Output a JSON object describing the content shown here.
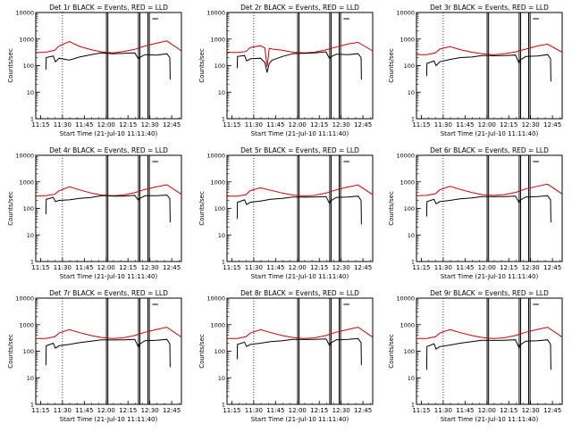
{
  "chart_data": [
    {
      "type": "line",
      "title": "Det 1r BLACK = Events, RED = LLD",
      "ylabel": "Counts/sec",
      "xlabel": "Start Time (21-Jul-10 11:11:40)",
      "yscale": "log",
      "ylim": [
        1,
        10000
      ],
      "yticks": [
        "1",
        "10",
        "100",
        "1000",
        "10000"
      ],
      "xlim_min": [
        0,
        100
      ],
      "x_tick_minutes": [
        3.33,
        18.33,
        33.33,
        48.33,
        63.33,
        78.33,
        93.33
      ],
      "xtick_labels": [
        "11:15",
        "11:30",
        "11:45",
        "12:00",
        "12:15",
        "12:30",
        "12:45"
      ],
      "series": [
        {
          "color": "#cc0000",
          "x": [
            0,
            7,
            13,
            16,
            23,
            30,
            38,
            45,
            53,
            60,
            68,
            75,
            83,
            90,
            100
          ],
          "values": [
            310,
            320,
            380,
            550,
            800,
            530,
            400,
            330,
            300,
            340,
            410,
            550,
            700,
            850,
            360
          ]
        },
        {
          "color": "#000000",
          "x": [
            7,
            7.2,
            12,
            13.5,
            16,
            23,
            30,
            38,
            45,
            49,
            53,
            60,
            68,
            70.5,
            71,
            75,
            83,
            90,
            92,
            92.3
          ],
          "values": [
            70,
            200,
            230,
            140,
            190,
            160,
            210,
            260,
            300,
            290,
            280,
            290,
            300,
            180,
            200,
            260,
            250,
            280,
            200,
            30
          ]
        }
      ]
    },
    {
      "type": "line",
      "title": "Det 2r BLACK = Events, RED = LLD",
      "ylabel": "Counts/sec",
      "xlabel": "Start Time (21-Jul-10 11:11:40)",
      "yscale": "log",
      "ylim": [
        1,
        10000
      ],
      "yticks": [
        "1",
        "10",
        "100",
        "1000",
        "10000"
      ],
      "xlim_min": [
        0,
        100
      ],
      "x_tick_minutes": [
        3.33,
        18.33,
        33.33,
        48.33,
        63.33,
        78.33,
        93.33
      ],
      "xtick_labels": [
        "11:15",
        "11:30",
        "11:45",
        "12:00",
        "12:15",
        "12:30",
        "12:45"
      ],
      "series": [
        {
          "color": "#cc0000",
          "x": [
            0,
            7,
            13,
            16,
            23,
            26,
            27.5,
            29,
            31,
            38,
            45,
            53,
            60,
            68,
            75,
            83,
            90,
            100
          ],
          "values": [
            320,
            310,
            340,
            480,
            560,
            460,
            90,
            450,
            420,
            380,
            320,
            300,
            320,
            390,
            500,
            650,
            750,
            360
          ]
        },
        {
          "color": "#000000",
          "x": [
            7,
            7.2,
            12,
            13.5,
            16,
            23,
            26,
            27.5,
            29,
            31,
            38,
            45,
            49,
            53,
            60,
            68,
            70.5,
            71,
            75,
            83,
            90,
            92,
            92.3
          ],
          "values": [
            80,
            220,
            240,
            150,
            180,
            190,
            130,
            55,
            120,
            160,
            220,
            280,
            290,
            290,
            300,
            330,
            180,
            210,
            270,
            260,
            280,
            200,
            30
          ]
        }
      ]
    },
    {
      "type": "line",
      "title": "Det 3r BLACK = Events, RED = LLD",
      "ylabel": "Counts/sec",
      "xlabel": "Start Time (21-Jul-10 11:11:40)",
      "yscale": "log",
      "ylim": [
        1,
        10000
      ],
      "yticks": [
        "1",
        "10",
        "100",
        "1000",
        "10000"
      ],
      "xlim_min": [
        0,
        100
      ],
      "x_tick_minutes": [
        3.33,
        18.33,
        33.33,
        48.33,
        63.33,
        78.33,
        93.33
      ],
      "xtick_labels": [
        "11:15",
        "11:30",
        "11:45",
        "12:00",
        "12:15",
        "12:30",
        "12:45"
      ],
      "series": [
        {
          "color": "#cc0000",
          "x": [
            0,
            7,
            13,
            16,
            23,
            30,
            38,
            45,
            53,
            60,
            68,
            75,
            83,
            90,
            100
          ],
          "values": [
            260,
            260,
            300,
            420,
            520,
            400,
            320,
            280,
            260,
            280,
            330,
            420,
            550,
            640,
            320
          ]
        },
        {
          "color": "#000000",
          "x": [
            7,
            7.2,
            12,
            13.5,
            16,
            23,
            30,
            38,
            45,
            49,
            53,
            60,
            68,
            70.5,
            71,
            75,
            83,
            90,
            92,
            92.3
          ],
          "values": [
            40,
            120,
            150,
            100,
            140,
            170,
            200,
            210,
            240,
            240,
            235,
            240,
            250,
            120,
            160,
            220,
            230,
            260,
            180,
            25
          ]
        }
      ]
    },
    {
      "type": "line",
      "title": "Det 4r BLACK = Events, RED = LLD",
      "ylabel": "Counts/sec",
      "xlabel": "Start Time (21-Jul-10 11:11:40)",
      "yscale": "log",
      "ylim": [
        1,
        10000
      ],
      "yticks": [
        "1",
        "10",
        "100",
        "1000",
        "10000"
      ],
      "xlim_min": [
        0,
        100
      ],
      "x_tick_minutes": [
        3.33,
        18.33,
        33.33,
        48.33,
        63.33,
        78.33,
        93.33
      ],
      "xtick_labels": [
        "11:15",
        "11:30",
        "11:45",
        "12:00",
        "12:15",
        "12:30",
        "12:45"
      ],
      "series": [
        {
          "color": "#cc0000",
          "x": [
            0,
            7,
            13,
            16,
            23,
            30,
            38,
            45,
            53,
            60,
            68,
            75,
            83,
            90,
            100
          ],
          "values": [
            290,
            300,
            340,
            460,
            650,
            500,
            380,
            320,
            300,
            320,
            390,
            520,
            650,
            780,
            340
          ]
        },
        {
          "color": "#000000",
          "x": [
            7,
            7.2,
            12,
            13.5,
            16,
            23,
            30,
            38,
            45,
            49,
            53,
            60,
            68,
            70.5,
            71,
            75,
            83,
            90,
            92,
            92.3
          ],
          "values": [
            60,
            220,
            260,
            180,
            200,
            210,
            240,
            260,
            300,
            300,
            290,
            290,
            310,
            200,
            230,
            300,
            300,
            320,
            230,
            30
          ]
        }
      ]
    },
    {
      "type": "line",
      "title": "Det 5r BLACK = Events, RED = LLD",
      "ylabel": "Counts/sec",
      "xlabel": "Start Time (21-Jul-10 11:11:40)",
      "yscale": "log",
      "ylim": [
        1,
        10000
      ],
      "yticks": [
        "1",
        "10",
        "100",
        "1000",
        "10000"
      ],
      "xlim_min": [
        0,
        100
      ],
      "x_tick_minutes": [
        3.33,
        18.33,
        33.33,
        48.33,
        63.33,
        78.33,
        93.33
      ],
      "xtick_labels": [
        "11:15",
        "11:30",
        "11:45",
        "12:00",
        "12:15",
        "12:30",
        "12:45"
      ],
      "series": [
        {
          "color": "#cc0000",
          "x": [
            0,
            7,
            13,
            16,
            23,
            30,
            38,
            45,
            53,
            60,
            68,
            75,
            83,
            90,
            100
          ],
          "values": [
            290,
            290,
            330,
            470,
            600,
            480,
            380,
            320,
            290,
            310,
            380,
            500,
            640,
            760,
            330
          ]
        },
        {
          "color": "#000000",
          "x": [
            7,
            7.2,
            12,
            13.5,
            16,
            23,
            30,
            38,
            45,
            49,
            53,
            60,
            68,
            70.5,
            71,
            75,
            83,
            90,
            92,
            92.3
          ],
          "values": [
            40,
            170,
            210,
            140,
            170,
            190,
            220,
            240,
            270,
            270,
            265,
            270,
            280,
            150,
            190,
            260,
            270,
            290,
            200,
            25
          ]
        }
      ]
    },
    {
      "type": "line",
      "title": "Det 6r BLACK = Events, RED = LLD",
      "ylabel": "Counts/sec",
      "xlabel": "Start Time (21-Jul-10 11:11:40)",
      "yscale": "log",
      "ylim": [
        1,
        10000
      ],
      "yticks": [
        "1",
        "10",
        "100",
        "1000",
        "10000"
      ],
      "xlim_min": [
        0,
        100
      ],
      "x_tick_minutes": [
        3.33,
        18.33,
        33.33,
        48.33,
        63.33,
        78.33,
        93.33
      ],
      "xtick_labels": [
        "11:15",
        "11:30",
        "11:45",
        "12:00",
        "12:15",
        "12:30",
        "12:45"
      ],
      "series": [
        {
          "color": "#cc0000",
          "x": [
            0,
            7,
            13,
            16,
            23,
            30,
            38,
            45,
            53,
            60,
            68,
            75,
            83,
            90,
            100
          ],
          "values": [
            300,
            310,
            360,
            500,
            680,
            520,
            400,
            330,
            310,
            330,
            400,
            540,
            680,
            820,
            350
          ]
        },
        {
          "color": "#000000",
          "x": [
            7,
            7.2,
            12,
            13.5,
            16,
            23,
            30,
            38,
            45,
            49,
            53,
            60,
            68,
            70.5,
            71,
            75,
            83,
            90,
            92,
            92.3
          ],
          "values": [
            50,
            180,
            220,
            150,
            180,
            200,
            230,
            250,
            280,
            280,
            275,
            280,
            290,
            160,
            200,
            270,
            280,
            300,
            210,
            30
          ]
        }
      ]
    },
    {
      "type": "line",
      "title": "Det 7r BLACK = Events, RED = LLD",
      "ylabel": "Counts/sec",
      "xlabel": "Start Time (21-Jul-10 11:11:40)",
      "yscale": "log",
      "ylim": [
        1,
        10000
      ],
      "yticks": [
        "1",
        "10",
        "100",
        "1000",
        "10000"
      ],
      "xlim_min": [
        0,
        100
      ],
      "x_tick_minutes": [
        3.33,
        18.33,
        33.33,
        48.33,
        63.33,
        78.33,
        93.33
      ],
      "xtick_labels": [
        "11:15",
        "11:30",
        "11:45",
        "12:00",
        "12:15",
        "12:30",
        "12:45"
      ],
      "series": [
        {
          "color": "#cc0000",
          "x": [
            0,
            7,
            13,
            16,
            23,
            30,
            38,
            45,
            53,
            60,
            68,
            75,
            83,
            90,
            100
          ],
          "values": [
            300,
            300,
            350,
            480,
            650,
            500,
            390,
            330,
            300,
            320,
            390,
            520,
            660,
            800,
            340
          ]
        },
        {
          "color": "#000000",
          "x": [
            7,
            7.2,
            12,
            13.5,
            16,
            23,
            30,
            38,
            45,
            49,
            53,
            60,
            68,
            70.5,
            71,
            75,
            83,
            90,
            92,
            92.3
          ],
          "values": [
            30,
            160,
            200,
            130,
            160,
            180,
            210,
            240,
            270,
            270,
            265,
            270,
            280,
            140,
            180,
            250,
            260,
            280,
            190,
            25
          ]
        }
      ]
    },
    {
      "type": "line",
      "title": "Det 8r BLACK = Events, RED = LLD",
      "ylabel": "Counts/sec",
      "xlabel": "Start Time (21-Jul-10 11:11:40)",
      "yscale": "log",
      "ylim": [
        1,
        10000
      ],
      "yticks": [
        "1",
        "10",
        "100",
        "1000",
        "10000"
      ],
      "xlim_min": [
        0,
        100
      ],
      "x_tick_minutes": [
        3.33,
        18.33,
        33.33,
        48.33,
        63.33,
        78.33,
        93.33
      ],
      "xtick_labels": [
        "11:15",
        "11:30",
        "11:45",
        "12:00",
        "12:15",
        "12:30",
        "12:45"
      ],
      "series": [
        {
          "color": "#cc0000",
          "x": [
            0,
            7,
            13,
            16,
            23,
            30,
            38,
            45,
            53,
            60,
            68,
            75,
            83,
            90,
            100
          ],
          "values": [
            300,
            300,
            350,
            480,
            650,
            500,
            390,
            330,
            300,
            320,
            390,
            520,
            660,
            800,
            340
          ]
        },
        {
          "color": "#000000",
          "x": [
            7,
            7.2,
            12,
            13.5,
            16,
            23,
            30,
            38,
            45,
            49,
            53,
            60,
            68,
            70.5,
            71,
            75,
            83,
            90,
            92,
            92.3
          ],
          "values": [
            50,
            180,
            220,
            150,
            180,
            200,
            230,
            250,
            280,
            280,
            275,
            280,
            290,
            160,
            200,
            270,
            280,
            300,
            210,
            30
          ]
        }
      ]
    },
    {
      "type": "line",
      "title": "Det 9r BLACK = Events, RED = LLD",
      "ylabel": "Counts/sec",
      "xlabel": "Start Time (21-Jul-10 11:11:40)",
      "yscale": "log",
      "ylim": [
        1,
        10000
      ],
      "yticks": [
        "1",
        "10",
        "100",
        "1000",
        "10000"
      ],
      "xlim_min": [
        0,
        100
      ],
      "x_tick_minutes": [
        3.33,
        18.33,
        33.33,
        48.33,
        63.33,
        78.33,
        93.33
      ],
      "xtick_labels": [
        "11:15",
        "11:30",
        "11:45",
        "12:00",
        "12:15",
        "12:30",
        "12:45"
      ],
      "series": [
        {
          "color": "#cc0000",
          "x": [
            0,
            7,
            13,
            16,
            23,
            30,
            38,
            45,
            53,
            60,
            68,
            75,
            83,
            90,
            100
          ],
          "values": [
            300,
            300,
            350,
            480,
            650,
            500,
            390,
            330,
            300,
            320,
            390,
            520,
            660,
            800,
            340
          ]
        },
        {
          "color": "#000000",
          "x": [
            7,
            7.2,
            12,
            13.5,
            16,
            23,
            30,
            38,
            45,
            49,
            53,
            60,
            68,
            70.5,
            71,
            75,
            83,
            90,
            92,
            92.3
          ],
          "values": [
            20,
            150,
            190,
            120,
            150,
            170,
            200,
            230,
            260,
            260,
            255,
            260,
            270,
            130,
            170,
            240,
            250,
            270,
            180,
            20
          ]
        }
      ]
    }
  ],
  "annotations": {
    "dotted_vline_min": 18.33,
    "solid_vlines_min": [
      48.5,
      49.5,
      70.5,
      71.5,
      77,
      78
    ],
    "shelf_segment": [
      80,
      84
    ],
    "curve_start_min": 7
  }
}
